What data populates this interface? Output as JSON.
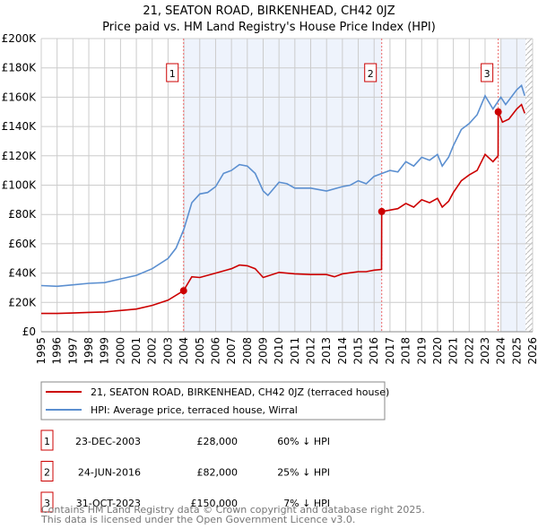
{
  "chart_data": {
    "type": "line",
    "title": "21, SEATON ROAD, BIRKENHEAD, CH42 0JZ",
    "subtitle": "Price paid vs. HM Land Registry's House Price Index (HPI)",
    "xlim": [
      1995,
      2026
    ],
    "ylim": [
      0,
      200000
    ],
    "grid": true,
    "x_ticks": [
      "1995",
      "1996",
      "1997",
      "1998",
      "1999",
      "2000",
      "2001",
      "2002",
      "2003",
      "2004",
      "2005",
      "2006",
      "2007",
      "2008",
      "2009",
      "2010",
      "2011",
      "2012",
      "2013",
      "2014",
      "2015",
      "2016",
      "2017",
      "2018",
      "2019",
      "2020",
      "2021",
      "2022",
      "2023",
      "2024",
      "2025",
      "2026"
    ],
    "y_ticks": [
      {
        "v": 0,
        "label": "£0"
      },
      {
        "v": 20000,
        "label": "£20K"
      },
      {
        "v": 40000,
        "label": "£40K"
      },
      {
        "v": 60000,
        "label": "£60K"
      },
      {
        "v": 80000,
        "label": "£80K"
      },
      {
        "v": 100000,
        "label": "£100K"
      },
      {
        "v": 120000,
        "label": "£120K"
      },
      {
        "v": 140000,
        "label": "£140K"
      },
      {
        "v": 160000,
        "label": "£160K"
      },
      {
        "v": 180000,
        "label": "£180K"
      },
      {
        "v": 200000,
        "label": "£200K"
      }
    ],
    "series": [
      {
        "name": "21, SEATON ROAD, BIRKENHEAD, CH42 0JZ (terraced house)",
        "color": "#cc0000",
        "x": [
          1995,
          1996,
          1997,
          1998,
          1999,
          2000,
          2001,
          2002,
          2003,
          2003.98,
          2004.5,
          2005,
          2006,
          2007,
          2007.5,
          2008,
          2008.5,
          2009,
          2010,
          2011,
          2012,
          2013,
          2013.5,
          2014,
          2015,
          2015.5,
          2016,
          2016.47,
          2016.48,
          2017,
          2017.5,
          2018,
          2018.5,
          2019,
          2019.5,
          2020,
          2020.3,
          2020.7,
          2021,
          2021.5,
          2022,
          2022.5,
          2023,
          2023.5,
          2023.82,
          2023.83,
          2024.1,
          2024.5,
          2025,
          2025.3,
          2025.5
        ],
        "y": [
          12500,
          12500,
          12800,
          13200,
          13500,
          14500,
          15500,
          18000,
          21500,
          28000,
          37500,
          37000,
          40000,
          43000,
          45500,
          45000,
          43000,
          37000,
          40500,
          39500,
          39000,
          39000,
          37500,
          39500,
          41000,
          41000,
          42000,
          42500,
          82000,
          83000,
          84000,
          87500,
          85000,
          90000,
          88000,
          91000,
          85000,
          89000,
          95000,
          103000,
          107000,
          110000,
          121000,
          116000,
          120000,
          150000,
          143000,
          145000,
          152000,
          155000,
          149000
        ]
      },
      {
        "name": "HPI: Average price, terraced house, Wirral",
        "color": "#5b8fd0",
        "x": [
          1995,
          1996,
          1997,
          1998,
          1999,
          2000,
          2001,
          2002,
          2003,
          2003.5,
          2004,
          2004.5,
          2005,
          2005.5,
          2006,
          2006.5,
          2007,
          2007.5,
          2008,
          2008.5,
          2009,
          2009.3,
          2010,
          2010.5,
          2011,
          2012,
          2013,
          2014,
          2014.5,
          2015,
          2015.5,
          2016,
          2016.5,
          2017,
          2017.5,
          2018,
          2018.5,
          2019,
          2019.5,
          2020,
          2020.3,
          2020.7,
          2021,
          2021.5,
          2022,
          2022.5,
          2023,
          2023.5,
          2024,
          2024.3,
          2025,
          2025.3,
          2025.5
        ],
        "y": [
          31500,
          31000,
          32000,
          33000,
          33500,
          36000,
          38500,
          43000,
          50000,
          57000,
          70000,
          88000,
          94000,
          95000,
          99000,
          108000,
          110000,
          114000,
          113000,
          108000,
          96000,
          93000,
          102000,
          101000,
          98000,
          98000,
          96000,
          99000,
          100000,
          103000,
          101000,
          106000,
          108000,
          110000,
          109000,
          116000,
          113000,
          119000,
          117000,
          121000,
          113000,
          119000,
          127000,
          138000,
          142000,
          148000,
          161000,
          152000,
          160000,
          155000,
          165000,
          168000,
          161000
        ]
      }
    ],
    "sales": [
      {
        "num": "1",
        "x": 2003.98,
        "y": 28000,
        "date": "23-DEC-2003",
        "price": "£28,000",
        "hpi": "60% ↓ HPI"
      },
      {
        "num": "2",
        "x": 2016.48,
        "y": 82000,
        "date": "24-JUN-2016",
        "price": "£82,000",
        "hpi": "25% ↓ HPI"
      },
      {
        "num": "3",
        "x": 2023.83,
        "y": 150000,
        "date": "31-OCT-2023",
        "price": "£150,000",
        "hpi": "7% ↓ HPI"
      }
    ],
    "legend_position": "below"
  },
  "footer": [
    "Contains HM Land Registry data © Crown copyright and database right 2025.",
    "This data is licensed under the Open Government Licence v3.0."
  ]
}
